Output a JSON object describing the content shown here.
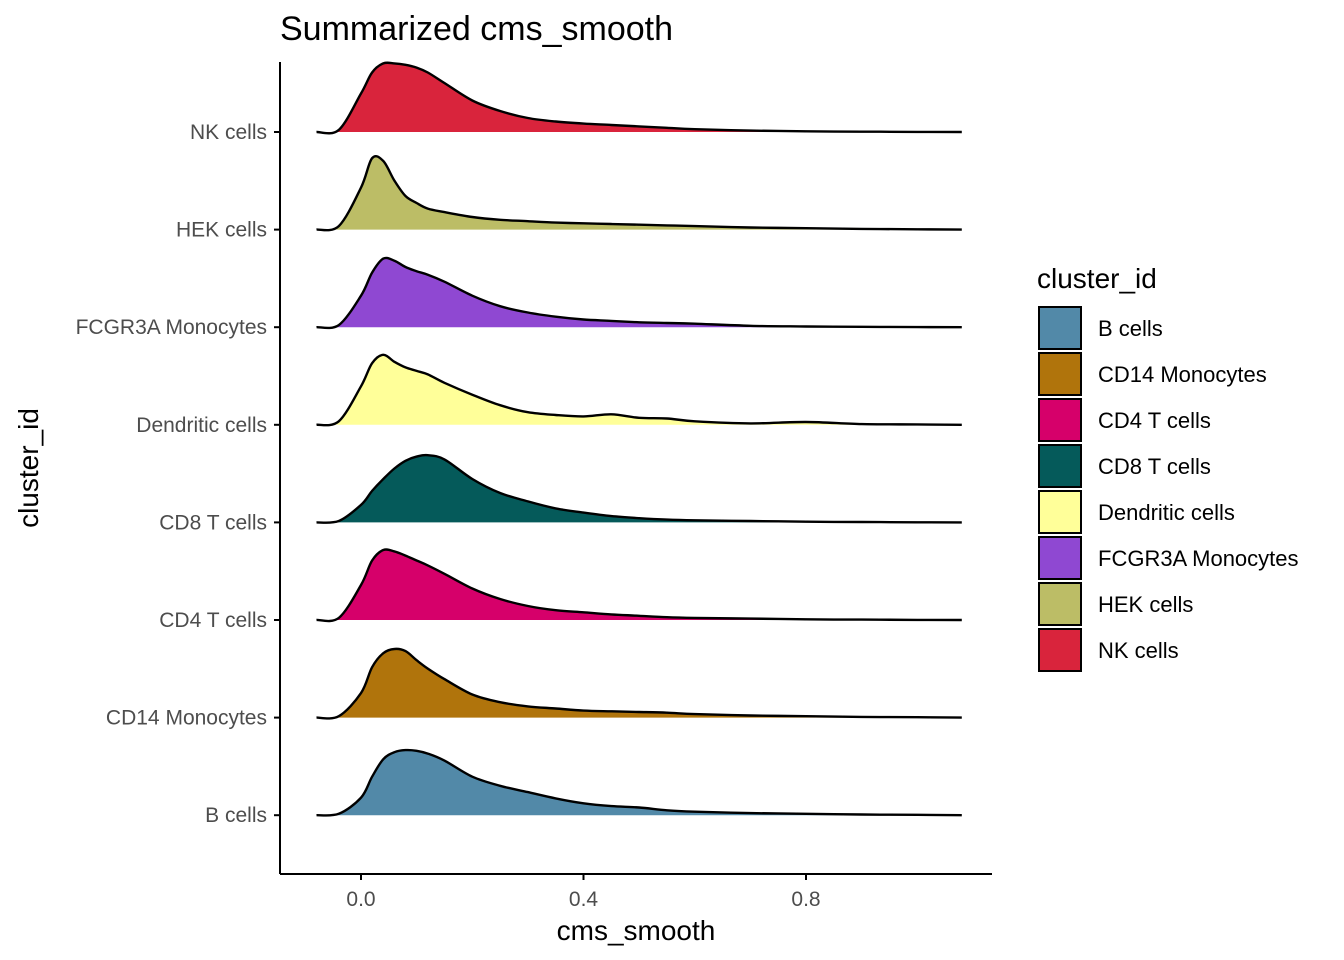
{
  "chart_data": {
    "type": "ridgeline",
    "title": "Summarized cms_smooth",
    "xlabel": "cms_smooth",
    "ylabel": "cluster_id",
    "x_range": [
      -0.1,
      1.08
    ],
    "x_ticks": [
      0.0,
      0.4,
      0.8
    ],
    "x_tick_labels": [
      "0.0",
      "0.4",
      "0.8"
    ],
    "grid": false,
    "legend": {
      "title": "cluster_id",
      "position": "right",
      "items": [
        {
          "name": "B cells",
          "color": "#5289A8"
        },
        {
          "name": "CD14 Monocytes",
          "color": "#B0740C"
        },
        {
          "name": "CD4 T cells",
          "color": "#D6006A"
        },
        {
          "name": "CD8 T cells",
          "color": "#055A5A"
        },
        {
          "name": "Dendritic cells",
          "color": "#FFFF99"
        },
        {
          "name": "FCGR3A Monocytes",
          "color": "#8F48D2"
        },
        {
          "name": "HEK cells",
          "color": "#BCBD66"
        },
        {
          "name": "NK cells",
          "color": "#D9243C"
        }
      ]
    },
    "x": [
      -0.08,
      -0.04,
      0.0,
      0.02,
      0.04,
      0.06,
      0.08,
      0.1,
      0.12,
      0.15,
      0.2,
      0.25,
      0.3,
      0.35,
      0.4,
      0.45,
      0.5,
      0.55,
      0.6,
      0.7,
      0.8,
      0.9,
      1.0,
      1.08
    ],
    "series": [
      {
        "name": "B cells",
        "color": "#5289A8",
        "values": [
          0.0,
          0.02,
          0.25,
          0.55,
          0.8,
          0.9,
          0.93,
          0.92,
          0.88,
          0.78,
          0.55,
          0.42,
          0.33,
          0.24,
          0.17,
          0.13,
          0.11,
          0.07,
          0.05,
          0.03,
          0.02,
          0.01,
          0.005,
          0.0
        ]
      },
      {
        "name": "CD14 Monocytes",
        "color": "#B0740C",
        "values": [
          0.0,
          0.02,
          0.35,
          0.72,
          0.92,
          0.98,
          0.95,
          0.82,
          0.7,
          0.55,
          0.33,
          0.22,
          0.16,
          0.13,
          0.1,
          0.09,
          0.08,
          0.07,
          0.05,
          0.03,
          0.02,
          0.01,
          0.005,
          0.0
        ]
      },
      {
        "name": "CD4 T cells",
        "color": "#D6006A",
        "values": [
          0.0,
          0.03,
          0.5,
          0.85,
          1.0,
          0.98,
          0.92,
          0.85,
          0.78,
          0.66,
          0.45,
          0.3,
          0.2,
          0.14,
          0.11,
          0.08,
          0.06,
          0.04,
          0.03,
          0.02,
          0.01,
          0.005,
          0.002,
          0.0
        ]
      },
      {
        "name": "CD8 T cells",
        "color": "#055A5A",
        "values": [
          0.0,
          0.02,
          0.25,
          0.45,
          0.62,
          0.77,
          0.88,
          0.94,
          0.96,
          0.9,
          0.62,
          0.42,
          0.3,
          0.2,
          0.14,
          0.09,
          0.06,
          0.04,
          0.03,
          0.02,
          0.01,
          0.005,
          0.002,
          0.0
        ]
      },
      {
        "name": "Dendritic cells",
        "color": "#FFFF99",
        "values": [
          0.0,
          0.05,
          0.55,
          0.88,
          1.0,
          0.9,
          0.82,
          0.77,
          0.72,
          0.6,
          0.43,
          0.28,
          0.18,
          0.14,
          0.12,
          0.15,
          0.1,
          0.09,
          0.05,
          0.02,
          0.04,
          0.01,
          0.005,
          0.0
        ]
      },
      {
        "name": "FCGR3A Monocytes",
        "color": "#8F48D2",
        "values": [
          0.0,
          0.03,
          0.45,
          0.78,
          0.98,
          0.95,
          0.86,
          0.8,
          0.75,
          0.65,
          0.45,
          0.3,
          0.21,
          0.15,
          0.11,
          0.09,
          0.07,
          0.06,
          0.05,
          0.02,
          0.01,
          0.005,
          0.002,
          0.0
        ]
      },
      {
        "name": "HEK cells",
        "color": "#BCBD66",
        "values": [
          0.0,
          0.05,
          0.6,
          1.02,
          0.98,
          0.7,
          0.48,
          0.38,
          0.3,
          0.25,
          0.18,
          0.14,
          0.12,
          0.1,
          0.09,
          0.08,
          0.07,
          0.06,
          0.05,
          0.03,
          0.02,
          0.01,
          0.005,
          0.0
        ]
      },
      {
        "name": "NK cells",
        "color": "#D9243C",
        "values": [
          0.0,
          0.03,
          0.55,
          0.85,
          0.98,
          0.98,
          0.96,
          0.92,
          0.85,
          0.7,
          0.45,
          0.3,
          0.2,
          0.15,
          0.12,
          0.1,
          0.08,
          0.06,
          0.04,
          0.02,
          0.01,
          0.005,
          0.002,
          0.0
        ]
      }
    ]
  }
}
